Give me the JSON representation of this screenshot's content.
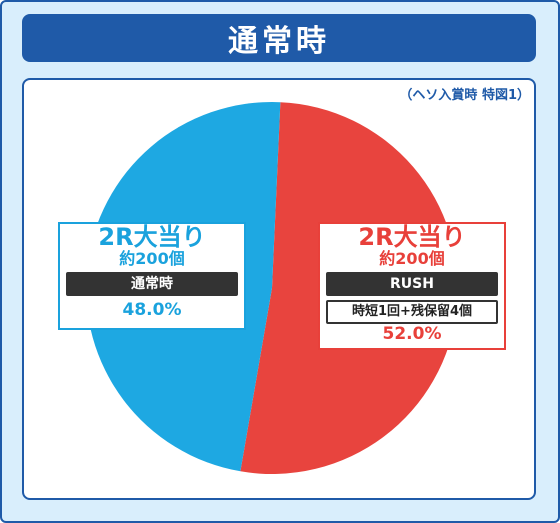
{
  "header": {
    "title": "通常時"
  },
  "note": "（ヘソ入賞時 特図1）",
  "chart_data": {
    "type": "pie",
    "title": "通常時",
    "slices": [
      {
        "name": "2R大当り 約200個 RUSH 時短1回+残保留4個",
        "value": 52.0,
        "label": "52.0%",
        "color": "#e8443e"
      },
      {
        "name": "2R大当り 約200個 通常時",
        "value": 48.0,
        "label": "48.0%",
        "color": "#1ea8e2"
      }
    ]
  },
  "labels": {
    "blue": {
      "title": "2R大当り",
      "sub": "約200個",
      "bar": "通常時",
      "pct": "48.0%"
    },
    "red": {
      "title": "2R大当り",
      "sub": "約200個",
      "bar": "RUSH",
      "bar2": "時短1回+残保留4個",
      "pct": "52.0%"
    }
  }
}
